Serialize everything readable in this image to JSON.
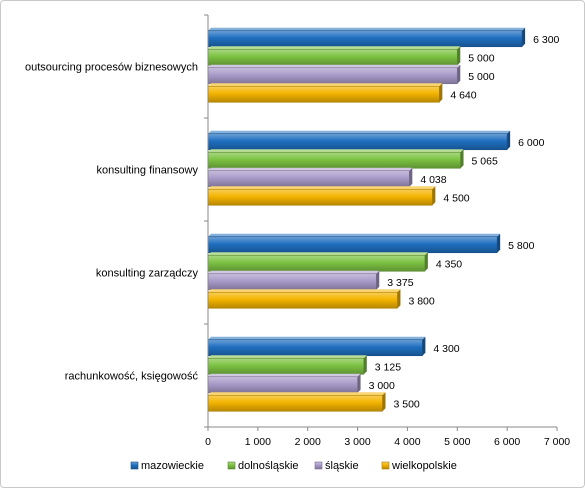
{
  "chart_data": {
    "type": "bar",
    "orientation": "horizontal",
    "title": "",
    "xlabel": "",
    "ylabel": "",
    "xlim": [
      0,
      7000
    ],
    "ticks": [
      0,
      1000,
      2000,
      3000,
      4000,
      5000,
      6000,
      7000
    ],
    "tick_labels": [
      "0",
      "1 000",
      "2 000",
      "3 000",
      "4 000",
      "5 000",
      "6 000",
      "7 000"
    ],
    "grid": false,
    "legend_position": "bottom",
    "categories": [
      "outsourcing procesów biznesowych",
      "konsulting finansowy",
      "konsulting zarządczy",
      "rachunkowość, księgowość"
    ],
    "series": [
      {
        "name": "mazowieckie",
        "color": "#1f6fc0",
        "values": [
          6300,
          6000,
          5800,
          4300
        ],
        "labels": [
          "6 300",
          "6 000",
          "5 800",
          "4 300"
        ]
      },
      {
        "name": "dolnośląskie",
        "color": "#7cc242",
        "values": [
          5000,
          5065,
          4350,
          3125
        ],
        "labels": [
          "5 000",
          "5 065",
          "4 350",
          "3 125"
        ]
      },
      {
        "name": "śląskie",
        "color": "#a99bc9",
        "values": [
          5000,
          4038,
          3375,
          3000
        ],
        "labels": [
          "5 000",
          "4 038",
          "3 375",
          "3 000"
        ]
      },
      {
        "name": "wielkopolskie",
        "color": "#f4b400",
        "values": [
          4640,
          4500,
          3800,
          3500
        ],
        "labels": [
          "4 640",
          "4 500",
          "3 800",
          "3 500"
        ]
      }
    ]
  }
}
